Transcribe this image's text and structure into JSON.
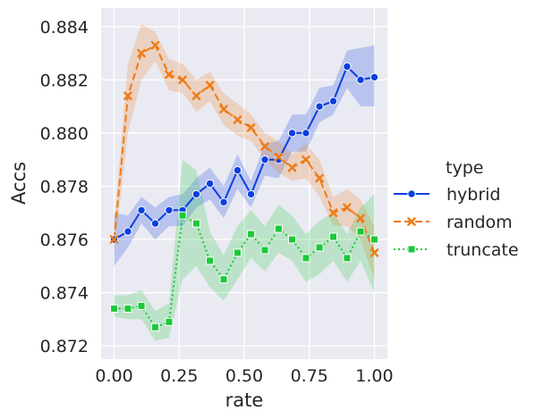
{
  "chart_data": {
    "type": "line",
    "xlabel": "rate",
    "ylabel": "Accs",
    "xlim": [
      -0.05,
      1.05
    ],
    "ylim": [
      0.8715,
      0.8847
    ],
    "xticks": [
      0.0,
      0.25,
      0.5,
      0.75,
      1.0
    ],
    "xtick_labels": [
      "0.00",
      "0.25",
      "0.50",
      "0.75",
      "1.00"
    ],
    "yticks": [
      0.872,
      0.874,
      0.876,
      0.878,
      0.88,
      0.882,
      0.884
    ],
    "ytick_labels": [
      "0.872",
      "0.874",
      "0.876",
      "0.878",
      "0.880",
      "0.882",
      "0.884"
    ],
    "grid": true,
    "legend_title": "type",
    "legend_position": "right",
    "x": [
      0.0,
      0.053,
      0.105,
      0.158,
      0.211,
      0.263,
      0.316,
      0.368,
      0.421,
      0.474,
      0.526,
      0.579,
      0.632,
      0.684,
      0.737,
      0.789,
      0.842,
      0.895,
      0.947,
      1.0
    ],
    "series": [
      {
        "name": "hybrid",
        "color": "#0b3fdf",
        "line_style": "solid",
        "marker": "circle",
        "values": [
          0.876,
          0.8763,
          0.8771,
          0.8766,
          0.8771,
          0.8771,
          0.8777,
          0.8781,
          0.8774,
          0.8786,
          0.8777,
          0.879,
          0.879,
          0.88,
          0.88,
          0.881,
          0.8812,
          0.8825,
          0.882,
          0.8821
        ],
        "ci_low": [
          0.875,
          0.8757,
          0.8766,
          0.876,
          0.8765,
          0.8765,
          0.8772,
          0.8775,
          0.8768,
          0.8779,
          0.8772,
          0.8784,
          0.8783,
          0.8793,
          0.8793,
          0.8804,
          0.8807,
          0.8817,
          0.881,
          0.881
        ],
        "ci_high": [
          0.877,
          0.8769,
          0.8776,
          0.8772,
          0.8776,
          0.8777,
          0.8783,
          0.8787,
          0.878,
          0.8792,
          0.8782,
          0.8796,
          0.8797,
          0.8807,
          0.8807,
          0.8817,
          0.8818,
          0.8831,
          0.8832,
          0.8833
        ]
      },
      {
        "name": "random",
        "color": "#f07b15",
        "line_style": "dashed",
        "marker": "x",
        "values": [
          0.876,
          0.8814,
          0.883,
          0.8833,
          0.8822,
          0.882,
          0.8814,
          0.8818,
          0.8809,
          0.8805,
          0.8802,
          0.8795,
          0.8791,
          0.8787,
          0.879,
          0.8783,
          0.877,
          0.8772,
          0.8768,
          0.8755
        ],
        "ci_low": [
          0.8754,
          0.88,
          0.882,
          0.8827,
          0.8816,
          0.8815,
          0.8808,
          0.8812,
          0.8803,
          0.8799,
          0.8797,
          0.879,
          0.8785,
          0.8782,
          0.8783,
          0.8776,
          0.8765,
          0.8765,
          0.876,
          0.8745
        ],
        "ci_high": [
          0.8766,
          0.8826,
          0.8841,
          0.8838,
          0.8828,
          0.8826,
          0.882,
          0.8823,
          0.8815,
          0.8811,
          0.8807,
          0.88,
          0.8797,
          0.8792,
          0.8796,
          0.879,
          0.8776,
          0.8779,
          0.8775,
          0.8765
        ]
      },
      {
        "name": "truncate",
        "color": "#1ac938",
        "line_style": "dotted",
        "marker": "square",
        "values": [
          0.8734,
          0.8734,
          0.8735,
          0.8727,
          0.8729,
          0.8769,
          0.8766,
          0.8752,
          0.8745,
          0.8755,
          0.8762,
          0.8756,
          0.8764,
          0.876,
          0.8753,
          0.8757,
          0.8761,
          0.8753,
          0.8763,
          0.876
        ],
        "ci_low": [
          0.8731,
          0.873,
          0.873,
          0.8722,
          0.8723,
          0.8745,
          0.875,
          0.8742,
          0.8737,
          0.8745,
          0.8753,
          0.8748,
          0.8755,
          0.8752,
          0.8744,
          0.8747,
          0.8752,
          0.8744,
          0.8752,
          0.874
        ],
        "ci_high": [
          0.8739,
          0.8739,
          0.8741,
          0.8733,
          0.8736,
          0.879,
          0.8786,
          0.8763,
          0.8754,
          0.8765,
          0.8771,
          0.8765,
          0.8773,
          0.8769,
          0.8762,
          0.8767,
          0.877,
          0.8762,
          0.8772,
          0.8777
        ]
      }
    ]
  }
}
